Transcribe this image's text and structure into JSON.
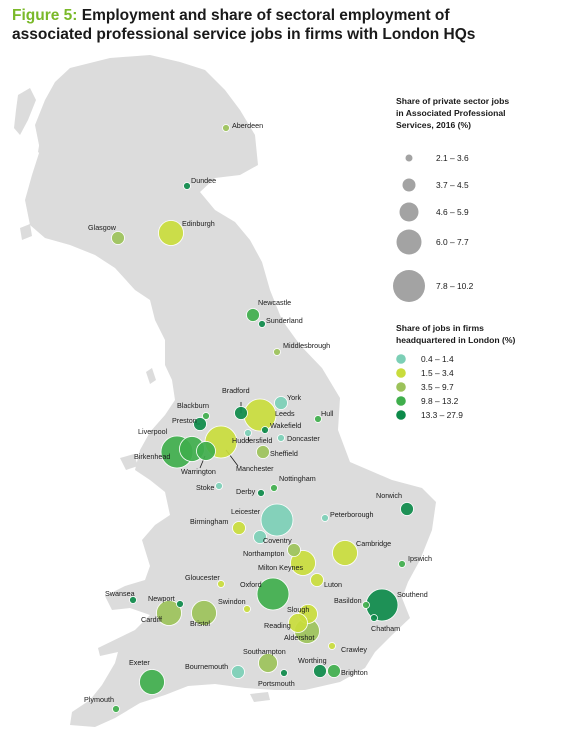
{
  "figure": {
    "label": "Figure 5:",
    "title": "Employment and share of sectoral employment of associated professional service jobs in firms with London HQs"
  },
  "colors": {
    "land": "#dcdcdc",
    "size_legend_fill": "#a3a3a3",
    "share_classes": [
      "#7ccfb6",
      "#c9dc3c",
      "#9cc25a",
      "#3fae4c",
      "#0d8a4a"
    ]
  },
  "size_legend": {
    "title_lines": [
      "Share of private sector jobs",
      "in Associated Professional",
      "Services, 2016 (%)"
    ],
    "classes": [
      "2.1 – 3.6",
      "3.7 – 4.5",
      "4.6 – 5.9",
      "6.0 – 7.7",
      "7.8 – 10.2"
    ]
  },
  "color_legend": {
    "title_lines": [
      "Share of jobs in firms",
      "headquartered in London (%)"
    ],
    "classes": [
      "0.4 – 1.4",
      "1.5 – 3.4",
      "3.5 – 9.7",
      "9.8 – 13.2",
      "13.3 – 27.9"
    ]
  },
  "cities": [
    {
      "name": "Aberdeen",
      "size_class": 1,
      "share_class": 3
    },
    {
      "name": "Dundee",
      "size_class": 0,
      "share_class": 5
    },
    {
      "name": "Edinburgh",
      "size_class": 4,
      "share_class": 2
    },
    {
      "name": "Glasgow",
      "size_class": 2,
      "share_class": 3
    },
    {
      "name": "Newcastle",
      "size_class": 2,
      "share_class": 4
    },
    {
      "name": "Sunderland",
      "size_class": 0,
      "share_class": 5
    },
    {
      "name": "Middlesbrough",
      "size_class": 1,
      "share_class": 3
    },
    {
      "name": "York",
      "size_class": 2,
      "share_class": 1
    },
    {
      "name": "Bradford",
      "size_class": 2,
      "share_class": 5
    },
    {
      "name": "Leeds",
      "size_class": 5,
      "share_class": 2
    },
    {
      "name": "Hull",
      "size_class": 0,
      "share_class": 4
    },
    {
      "name": "Blackburn",
      "size_class": 1,
      "share_class": 4
    },
    {
      "name": "Preston",
      "size_class": 2,
      "share_class": 5
    },
    {
      "name": "Wakefield",
      "size_class": 0,
      "share_class": 5
    },
    {
      "name": "Huddersfield",
      "size_class": 1,
      "share_class": 1
    },
    {
      "name": "Doncaster",
      "size_class": 1,
      "share_class": 1
    },
    {
      "name": "Liverpool",
      "size_class": 5,
      "share_class": 4
    },
    {
      "name": "Manchester",
      "size_class": 5,
      "share_class": 2
    },
    {
      "name": "Birkenhead",
      "size_class": 4,
      "share_class": 4
    },
    {
      "name": "Warrington",
      "size_class": 3,
      "share_class": 4
    },
    {
      "name": "Sheffield",
      "size_class": 2,
      "share_class": 3
    },
    {
      "name": "Stoke",
      "size_class": 0,
      "share_class": 1
    },
    {
      "name": "Nottingham",
      "size_class": 1,
      "share_class": 4
    },
    {
      "name": "Derby",
      "size_class": 1,
      "share_class": 5
    },
    {
      "name": "Norwich",
      "size_class": 2,
      "share_class": 5
    },
    {
      "name": "Leicester",
      "size_class": 5,
      "share_class": 1
    },
    {
      "name": "Peterborough",
      "size_class": 0,
      "share_class": 1
    },
    {
      "name": "Birmingham",
      "size_class": 2,
      "share_class": 2
    },
    {
      "name": "Coventry",
      "size_class": 2,
      "share_class": 1
    },
    {
      "name": "Northampton",
      "size_class": 2,
      "share_class": 3
    },
    {
      "name": "Cambridge",
      "size_class": 4,
      "share_class": 2
    },
    {
      "name": "Milton Keynes",
      "size_class": 4,
      "share_class": 2
    },
    {
      "name": "Ipswich",
      "size_class": 1,
      "share_class": 4
    },
    {
      "name": "Gloucester",
      "size_class": 1,
      "share_class": 2
    },
    {
      "name": "Oxford",
      "size_class": 5,
      "share_class": 4
    },
    {
      "name": "Luton",
      "size_class": 2,
      "share_class": 2
    },
    {
      "name": "Swansea",
      "size_class": 0,
      "share_class": 5
    },
    {
      "name": "Newport",
      "size_class": 1,
      "share_class": 5
    },
    {
      "name": "Cardiff",
      "size_class": 4,
      "share_class": 3
    },
    {
      "name": "Bristol",
      "size_class": 4,
      "share_class": 3
    },
    {
      "name": "Swindon",
      "size_class": 1,
      "share_class": 2
    },
    {
      "name": "Basildon",
      "size_class": 0,
      "share_class": 4
    },
    {
      "name": "Southend",
      "size_class": 5,
      "share_class": 5
    },
    {
      "name": "Chatham",
      "size_class": 1,
      "share_class": 5
    },
    {
      "name": "Slough",
      "size_class": 3,
      "share_class": 2
    },
    {
      "name": "Reading",
      "size_class": 3,
      "share_class": 2
    },
    {
      "name": "Aldershot",
      "size_class": 4,
      "share_class": 3
    },
    {
      "name": "Crawley",
      "size_class": 1,
      "share_class": 2
    },
    {
      "name": "Southampton",
      "size_class": 3,
      "share_class": 3
    },
    {
      "name": "Bournemouth",
      "size_class": 2,
      "share_class": 1
    },
    {
      "name": "Portsmouth",
      "size_class": 1,
      "share_class": 5
    },
    {
      "name": "Worthing",
      "size_class": 2,
      "share_class": 5
    },
    {
      "name": "Brighton",
      "size_class": 2,
      "share_class": 4
    },
    {
      "name": "Exeter",
      "size_class": 4,
      "share_class": 4
    },
    {
      "name": "Plymouth",
      "size_class": 1,
      "share_class": 4
    }
  ]
}
